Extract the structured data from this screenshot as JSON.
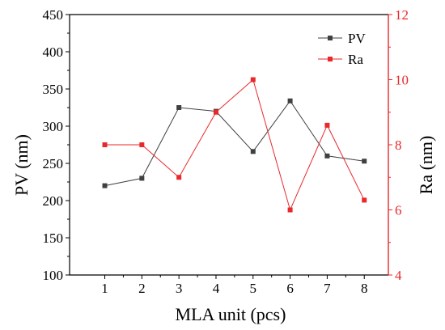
{
  "chart_data": {
    "type": "line",
    "xlabel": "MLA unit (pcs)",
    "x": [
      1,
      2,
      3,
      4,
      5,
      6,
      7,
      8
    ],
    "x_ticks": [
      "1",
      "2",
      "3",
      "4",
      "5",
      "6",
      "7",
      "8"
    ],
    "xlim": [
      0.05,
      8.65
    ],
    "y_left": {
      "label": "PV (nm)",
      "lim": [
        100,
        450
      ],
      "ticks": [
        "100",
        "150",
        "200",
        "250",
        "300",
        "350",
        "400",
        "450"
      ],
      "color": "#000000"
    },
    "y_right": {
      "label": "Ra (nm)",
      "lim": [
        4,
        12
      ],
      "ticks": [
        "4",
        "6",
        "8",
        "10",
        "12"
      ],
      "color": "#e8282b"
    },
    "series": [
      {
        "name": "PV",
        "axis": "left",
        "color": "#404040",
        "marker": "square",
        "values": [
          220,
          230,
          325,
          320,
          266,
          334,
          260,
          253
        ]
      },
      {
        "name": "Ra",
        "axis": "right",
        "color": "#e8282b",
        "marker": "square",
        "values": [
          8.0,
          8.0,
          7.0,
          9.0,
          10.0,
          6.0,
          8.6,
          6.3
        ]
      }
    ],
    "legend_position": "top-right",
    "grid": false
  }
}
